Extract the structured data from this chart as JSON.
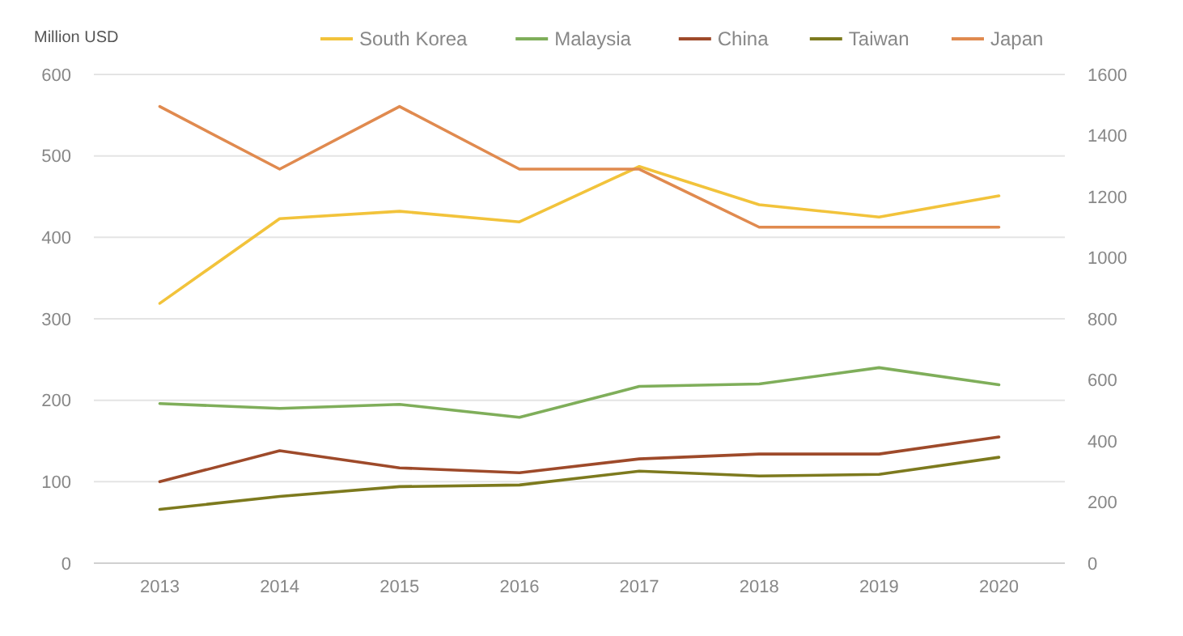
{
  "chart_data": {
    "type": "line",
    "ylabel": "Million USD",
    "categories": [
      "2013",
      "2014",
      "2015",
      "2016",
      "2017",
      "2018",
      "2019",
      "2020"
    ],
    "series": [
      {
        "name": "South Korea",
        "color": "#f2c33b",
        "values": [
          319,
          423,
          432,
          419,
          487,
          440,
          425,
          451
        ]
      },
      {
        "name": "Malaysia",
        "color": "#7fae5a",
        "values": [
          196,
          190,
          195,
          179,
          217,
          220,
          240,
          219
        ]
      },
      {
        "name": "China",
        "color": "#9e4a2a",
        "values": [
          100,
          138,
          117,
          111,
          128,
          134,
          134,
          155
        ]
      },
      {
        "name": "Taiwan",
        "color": "#7d7a1e",
        "values": [
          66,
          82,
          94,
          96,
          113,
          107,
          109,
          130
        ]
      },
      {
        "name": "Japan",
        "color": "#e08a4f",
        "axis": "y2",
        "values": [
          1495,
          1290,
          1495,
          1290,
          1290,
          1100,
          1100,
          1100
        ]
      }
    ],
    "ylim": [
      0,
      600
    ],
    "yticks": [
      0,
      100,
      200,
      300,
      400,
      500,
      600
    ],
    "y2lim": [
      0,
      1600
    ],
    "y2ticks": [
      0,
      200,
      400,
      600,
      800,
      1000,
      1200,
      1400,
      1600
    ],
    "grid": "y",
    "legend": "top",
    "marker": "none",
    "line_style": "solid"
  }
}
